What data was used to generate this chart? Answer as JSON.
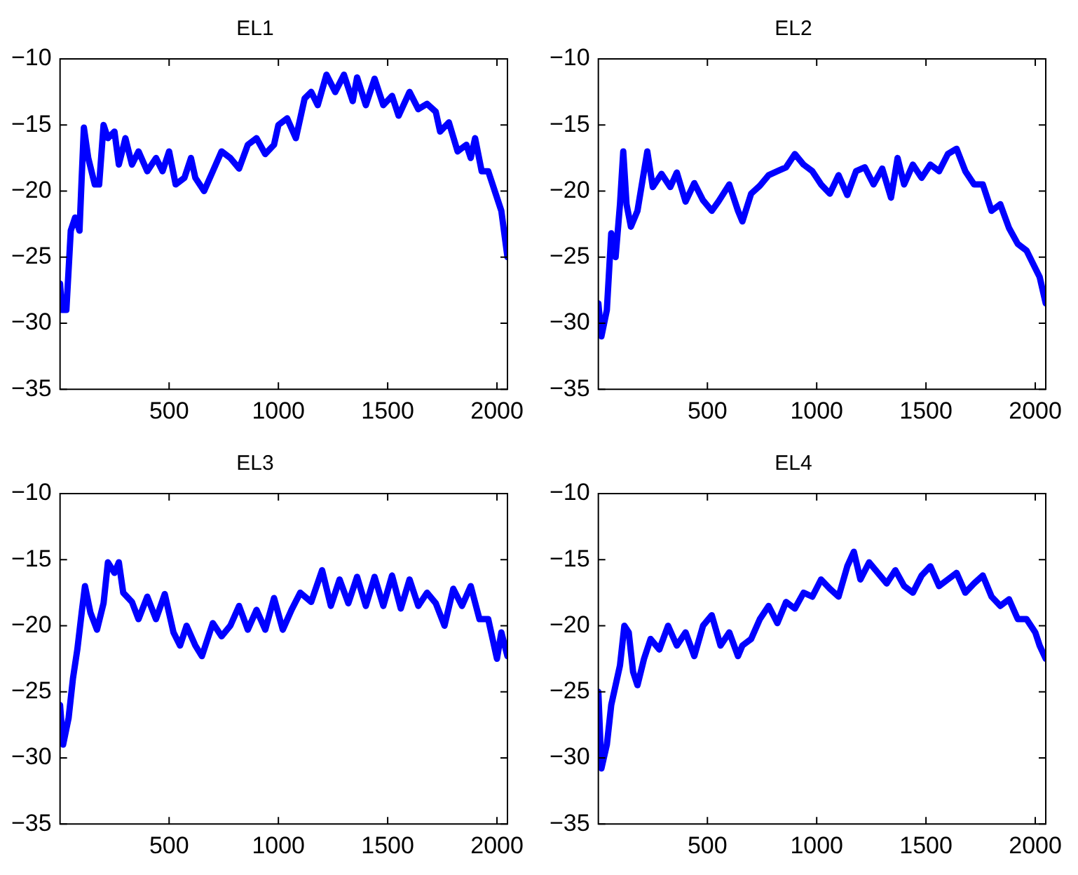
{
  "chart_data": [
    {
      "type": "line",
      "title": "EL1",
      "xlim": [
        1,
        2048
      ],
      "ylim": [
        -35,
        -10
      ],
      "xticks": [
        500,
        1000,
        1500,
        2000
      ],
      "yticks": [
        -35,
        -30,
        -25,
        -20,
        -15,
        -10
      ],
      "marker": "none",
      "series": [
        {
          "color": "#0000ff",
          "x": [
            1,
            10,
            30,
            50,
            70,
            90,
            100,
            110,
            130,
            160,
            180,
            200,
            220,
            250,
            270,
            300,
            330,
            360,
            400,
            440,
            470,
            500,
            530,
            570,
            600,
            620,
            660,
            700,
            740,
            780,
            820,
            860,
            900,
            940,
            980,
            1000,
            1040,
            1080,
            1120,
            1150,
            1180,
            1220,
            1260,
            1300,
            1340,
            1360,
            1400,
            1440,
            1480,
            1520,
            1550,
            1600,
            1640,
            1680,
            1720,
            1740,
            1780,
            1820,
            1860,
            1880,
            1900,
            1930,
            1960,
            1990,
            2020,
            2048
          ],
          "values": [
            -27,
            -29,
            -29,
            -23,
            -22,
            -23,
            -19,
            -15.2,
            -17.5,
            -19.5,
            -19.5,
            -15,
            -16,
            -15.5,
            -18,
            -16,
            -18,
            -17,
            -18.5,
            -17.5,
            -18.5,
            -17,
            -19.5,
            -19,
            -17.5,
            -19,
            -20,
            -18.5,
            -17,
            -17.5,
            -18.3,
            -16.5,
            -16,
            -17.2,
            -16.5,
            -15,
            -14.5,
            -16,
            -13,
            -12.5,
            -13.5,
            -11.2,
            -12.5,
            -11.2,
            -13.2,
            -11.4,
            -13.5,
            -11.5,
            -13.5,
            -12.8,
            -14.3,
            -12.5,
            -13.8,
            -13.4,
            -14,
            -15.5,
            -14.8,
            -17,
            -16.5,
            -17.5,
            -16,
            -18.5,
            -18.5,
            -20,
            -21.5,
            -25
          ]
        }
      ]
    },
    {
      "type": "line",
      "title": "EL2",
      "xlim": [
        1,
        2048
      ],
      "ylim": [
        -35,
        -10
      ],
      "xticks": [
        500,
        1000,
        1500,
        2000
      ],
      "yticks": [
        -35,
        -30,
        -25,
        -20,
        -15,
        -10
      ],
      "marker": "none",
      "series": [
        {
          "color": "#0000ff",
          "x": [
            1,
            15,
            40,
            60,
            80,
            100,
            115,
            130,
            150,
            180,
            210,
            225,
            250,
            290,
            330,
            360,
            400,
            440,
            480,
            520,
            550,
            600,
            640,
            660,
            700,
            740,
            780,
            820,
            860,
            900,
            940,
            980,
            1020,
            1060,
            1100,
            1140,
            1180,
            1220,
            1260,
            1300,
            1340,
            1370,
            1400,
            1440,
            1480,
            1520,
            1560,
            1600,
            1640,
            1680,
            1720,
            1760,
            1800,
            1840,
            1880,
            1920,
            1960,
            1990,
            2020,
            2048
          ],
          "values": [
            -28.5,
            -31,
            -29,
            -23.2,
            -25,
            -21,
            -17,
            -21,
            -22.7,
            -21.5,
            -18.5,
            -17,
            -19.7,
            -18.7,
            -19.7,
            -18.6,
            -20.8,
            -19.4,
            -20.7,
            -21.5,
            -20.8,
            -19.5,
            -21.5,
            -22.3,
            -20.2,
            -19.6,
            -18.8,
            -18.5,
            -18.2,
            -17.2,
            -18,
            -18.5,
            -19.5,
            -20.2,
            -18.8,
            -20.3,
            -18.5,
            -18.2,
            -19.5,
            -18.3,
            -20.5,
            -17.5,
            -19.5,
            -18,
            -19,
            -18,
            -18.5,
            -17.2,
            -16.8,
            -18.5,
            -19.5,
            -19.5,
            -21.5,
            -21,
            -22.8,
            -24,
            -24.5,
            -25.5,
            -26.5,
            -28.5
          ]
        }
      ]
    },
    {
      "type": "line",
      "title": "EL3",
      "xlim": [
        1,
        2048
      ],
      "ylim": [
        -35,
        -10
      ],
      "xticks": [
        500,
        1000,
        1500,
        2000
      ],
      "yticks": [
        -35,
        -30,
        -25,
        -20,
        -15,
        -10
      ],
      "marker": "none",
      "series": [
        {
          "color": "#0000ff",
          "x": [
            1,
            15,
            40,
            60,
            80,
            100,
            115,
            140,
            170,
            200,
            220,
            250,
            270,
            290,
            330,
            360,
            400,
            440,
            480,
            520,
            550,
            580,
            620,
            650,
            700,
            740,
            780,
            820,
            860,
            900,
            940,
            980,
            1020,
            1060,
            1100,
            1150,
            1200,
            1240,
            1280,
            1320,
            1360,
            1400,
            1440,
            1480,
            1520,
            1560,
            1600,
            1640,
            1680,
            1720,
            1760,
            1800,
            1840,
            1880,
            1920,
            1960,
            2000,
            2020,
            2048
          ],
          "values": [
            -26,
            -29,
            -27,
            -24,
            -21.8,
            -19,
            -17,
            -19,
            -20.3,
            -18.3,
            -15.2,
            -16,
            -15.2,
            -17.5,
            -18.2,
            -19.5,
            -17.8,
            -19.5,
            -17.6,
            -20.5,
            -21.5,
            -20,
            -21.5,
            -22.3,
            -19.8,
            -20.8,
            -20,
            -18.5,
            -20.3,
            -18.8,
            -20.3,
            -17.9,
            -20.3,
            -18.8,
            -17.5,
            -18.2,
            -15.8,
            -18.5,
            -16.5,
            -18.3,
            -16.3,
            -18.5,
            -16.3,
            -18.5,
            -16.2,
            -18.7,
            -16.5,
            -18.5,
            -17.5,
            -18.3,
            -20,
            -17.2,
            -18.5,
            -17,
            -19.5,
            -19.5,
            -22.5,
            -20.5,
            -22.3
          ]
        }
      ]
    },
    {
      "type": "line",
      "title": "EL4",
      "xlim": [
        1,
        2048
      ],
      "ylim": [
        -35,
        -10
      ],
      "xticks": [
        500,
        1000,
        1500,
        2000
      ],
      "yticks": [
        -35,
        -30,
        -25,
        -20,
        -15,
        -10
      ],
      "marker": "none",
      "series": [
        {
          "color": "#0000ff",
          "x": [
            1,
            15,
            40,
            60,
            80,
            100,
            120,
            140,
            160,
            180,
            210,
            240,
            280,
            320,
            360,
            400,
            440,
            480,
            520,
            560,
            600,
            640,
            660,
            700,
            740,
            780,
            820,
            860,
            900,
            940,
            980,
            1020,
            1060,
            1100,
            1140,
            1170,
            1200,
            1240,
            1280,
            1320,
            1360,
            1400,
            1440,
            1480,
            1520,
            1560,
            1600,
            1640,
            1680,
            1720,
            1760,
            1800,
            1840,
            1880,
            1920,
            1960,
            2000,
            2020,
            2048
          ],
          "values": [
            -25,
            -30.8,
            -29,
            -26,
            -24.5,
            -23,
            -20,
            -20.5,
            -23.5,
            -24.5,
            -22.5,
            -21,
            -21.8,
            -20,
            -21.5,
            -20.5,
            -22.3,
            -20,
            -19.2,
            -21.5,
            -20.5,
            -22.3,
            -21.5,
            -21,
            -19.5,
            -18.5,
            -19.8,
            -18.2,
            -18.7,
            -17.5,
            -17.8,
            -16.5,
            -17.2,
            -17.8,
            -15.5,
            -14.4,
            -16.5,
            -15.2,
            -16,
            -16.8,
            -15.8,
            -17,
            -17.5,
            -16.2,
            -15.5,
            -17,
            -16.5,
            -16,
            -17.5,
            -16.8,
            -16.2,
            -17.8,
            -18.5,
            -18,
            -19.5,
            -19.5,
            -20.5,
            -21.5,
            -22.5
          ]
        }
      ]
    }
  ]
}
